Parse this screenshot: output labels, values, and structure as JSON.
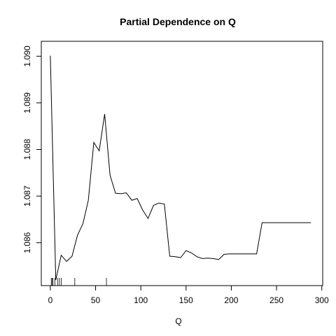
{
  "chart_data": {
    "type": "line",
    "title": "Partial Dependence on Q",
    "xlabel": "Q",
    "ylabel": "",
    "xlim": [
      -10,
      301
    ],
    "ylim": [
      1.08508,
      1.09032
    ],
    "xticks": [
      0,
      50,
      100,
      150,
      200,
      250,
      300
    ],
    "xtick_labels": [
      "0",
      "50",
      "100",
      "150",
      "200",
      "250",
      "300"
    ],
    "yticks": [
      1.086,
      1.087,
      1.088,
      1.089,
      1.09
    ],
    "ytick_labels": [
      "1.086",
      "1.087",
      "1.088",
      "1.089",
      "1.090"
    ],
    "grid": false,
    "line_color": "#000000",
    "series": [
      {
        "x": [
          0,
          6,
          12,
          18,
          24,
          30,
          36,
          42,
          48,
          54,
          60,
          66,
          72,
          78,
          84,
          90,
          96,
          102,
          108,
          114,
          120,
          126,
          132,
          138,
          144,
          150,
          156,
          162,
          168,
          174,
          180,
          186,
          192,
          198,
          204,
          210,
          216,
          222,
          228,
          234,
          240,
          246,
          252,
          258,
          264,
          270,
          276,
          282,
          288
        ],
        "y": [
          1.09001,
          1.0852,
          1.08573,
          1.0856,
          1.08571,
          1.08616,
          1.08641,
          1.08691,
          1.08815,
          1.08797,
          1.08876,
          1.08745,
          1.08706,
          1.08705,
          1.08707,
          1.08691,
          1.08695,
          1.0867,
          1.08652,
          1.0868,
          1.08685,
          1.08683,
          1.08571,
          1.0857,
          1.08568,
          1.08583,
          1.08578,
          1.0857,
          1.08566,
          1.08567,
          1.08566,
          1.08564,
          1.08575,
          1.08576,
          1.08576,
          1.08576,
          1.08576,
          1.08576,
          1.08576,
          1.08643,
          1.08643,
          1.08643,
          1.08643,
          1.08643,
          1.08643,
          1.08643,
          1.08643,
          1.08643,
          1.08643
        ]
      }
    ],
    "rug": [
      1,
      2,
      3,
      5,
      8,
      10,
      12,
      27,
      62
    ]
  }
}
